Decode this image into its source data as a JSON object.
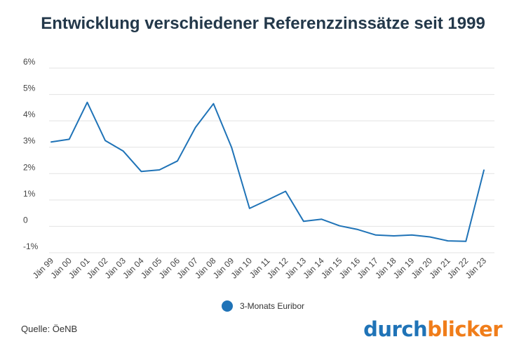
{
  "title": "Entwicklung verschiedener Referenzzinssätze seit 1999",
  "source": "Quelle: ÖeNB",
  "logo": {
    "part1": "durch",
    "part2": "blicker",
    "color1": "#1f73b7",
    "color2": "#f07d1a"
  },
  "chart_data": {
    "type": "line",
    "title": "Entwicklung verschiedener Referenzzinssätze seit 1999",
    "xlabel": "",
    "ylabel": "",
    "categories": [
      "Jän 99",
      "Jän 00",
      "Jän 01",
      "Jän 02",
      "Jän 03",
      "Jän 04",
      "Jän 05",
      "Jän 06",
      "Jän 07",
      "Jän 08",
      "Jän 09",
      "Jän 10",
      "Jän 11",
      "Jän 12",
      "Jän 13",
      "Jän 14",
      "Jän 15",
      "Jän 16",
      "Jän 17",
      "Jän 18",
      "Jän 19",
      "Jän 20",
      "Jän 21",
      "Jän 22",
      "Jän 23"
    ],
    "series": [
      {
        "name": "3-Monats Euribor",
        "color": "#1f73b7",
        "values": [
          3.2,
          3.3,
          4.7,
          3.25,
          2.85,
          2.08,
          2.14,
          2.48,
          3.75,
          4.65,
          3.0,
          0.68,
          1.0,
          1.33,
          0.19,
          0.27,
          0.02,
          -0.12,
          -0.33,
          -0.36,
          -0.33,
          -0.4,
          -0.55,
          -0.57,
          2.13
        ]
      }
    ],
    "ylim": [
      -1,
      6
    ],
    "yticks": [
      -1,
      0,
      1,
      2,
      3,
      4,
      5,
      6
    ],
    "ytick_labels": [
      "-1%",
      "0",
      "1%",
      "2%",
      "3%",
      "4%",
      "5%",
      "6%"
    ],
    "grid": true,
    "legend": "bottom-center"
  }
}
